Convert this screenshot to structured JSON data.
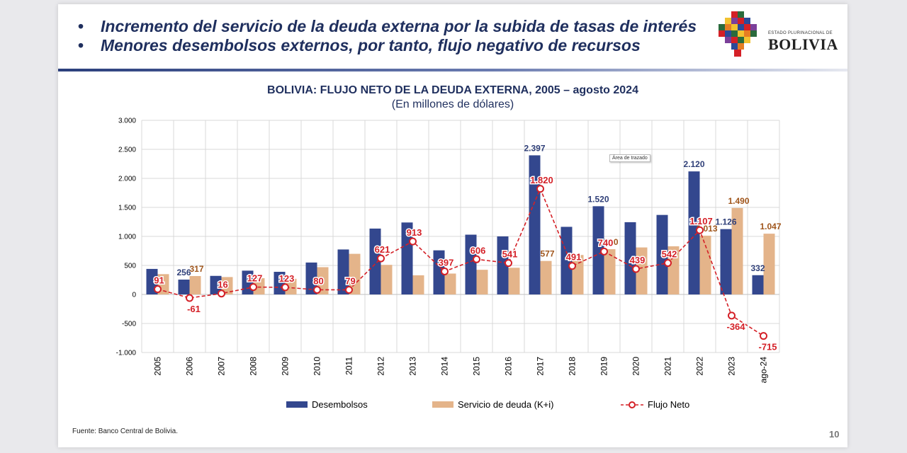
{
  "header": {
    "bullets": [
      "Incremento del servicio de la deuda externa por la subida de tasas de interés",
      "Menores desembolsos externos, por tanto, flujo negativo de recursos"
    ],
    "bullet_char": "•"
  },
  "logo": {
    "small_text": "ESTADO PLURINACIONAL DE",
    "big_text": "BOLIVIA"
  },
  "chart_data": {
    "type": "bar",
    "title": "BOLIVIA: FLUJO NETO DE LA DEUDA EXTERNA, 2005 – agosto 2024",
    "subtitle": "(En millones de dólares)",
    "categories": [
      "2005",
      "2006",
      "2007",
      "2008",
      "2009",
      "2010",
      "2011",
      "2012",
      "2013",
      "2014",
      "2015",
      "2016",
      "2017",
      "2018",
      "2019",
      "2020",
      "2021",
      "2022",
      "2023",
      "ago-24"
    ],
    "series": [
      {
        "name": "Desembolsos",
        "type": "bar",
        "color": "#33478e",
        "values": [
          440,
          256,
          320,
          410,
          390,
          550,
          775,
          1135,
          1240,
          760,
          1030,
          1000,
          2397,
          1165,
          1520,
          1245,
          1370,
          2120,
          1126,
          332
        ],
        "labels": [
          "",
          "256",
          "",
          "",
          "",
          "",
          "",
          "",
          "",
          "",
          "",
          "",
          "2.397",
          "",
          "1.520",
          "",
          "",
          "2.120",
          "1.126",
          "332"
        ]
      },
      {
        "name": "Servicio de deuda (K+i)",
        "type": "bar",
        "color": "#e4b48a",
        "values": [
          350,
          317,
          300,
          280,
          270,
          470,
          700,
          510,
          330,
          360,
          425,
          460,
          577,
          680,
          780,
          810,
          830,
          1013,
          1490,
          1047
        ],
        "labels": [
          "",
          "317",
          "",
          "",
          "",
          "",
          "",
          "",
          "",
          "",
          "",
          "",
          "577",
          "",
          "780",
          "",
          "",
          "1.013",
          "1.490",
          "1.047"
        ]
      },
      {
        "name": "Flujo Neto",
        "type": "line",
        "color": "#d42027",
        "values": [
          91,
          -61,
          16,
          127,
          123,
          80,
          79,
          621,
          913,
          397,
          606,
          541,
          1820,
          491,
          740,
          439,
          542,
          1107,
          -364,
          -715
        ],
        "labels": [
          "91",
          "-61",
          "16",
          "127",
          "123",
          "80",
          "79",
          "621",
          "913",
          "397",
          "606",
          "541",
          "1.820",
          "491",
          "740",
          "439",
          "542",
          "1.107",
          "-364",
          "-715"
        ]
      }
    ],
    "yaxis": {
      "min": -1000,
      "max": 3000,
      "ticks": [
        -1000,
        -500,
        0,
        500,
        1000,
        1500,
        2000,
        2500,
        3000
      ],
      "tick_labels": [
        "-1.000",
        "-500",
        "0",
        "500",
        "1.000",
        "1.500",
        "2.000",
        "2.500",
        "3.000"
      ]
    },
    "grid": true,
    "legend_position": "bottom"
  },
  "tooltip": "Área de trazado",
  "source": "Fuente: Banco Central de Bolivia.",
  "page_number": "10"
}
